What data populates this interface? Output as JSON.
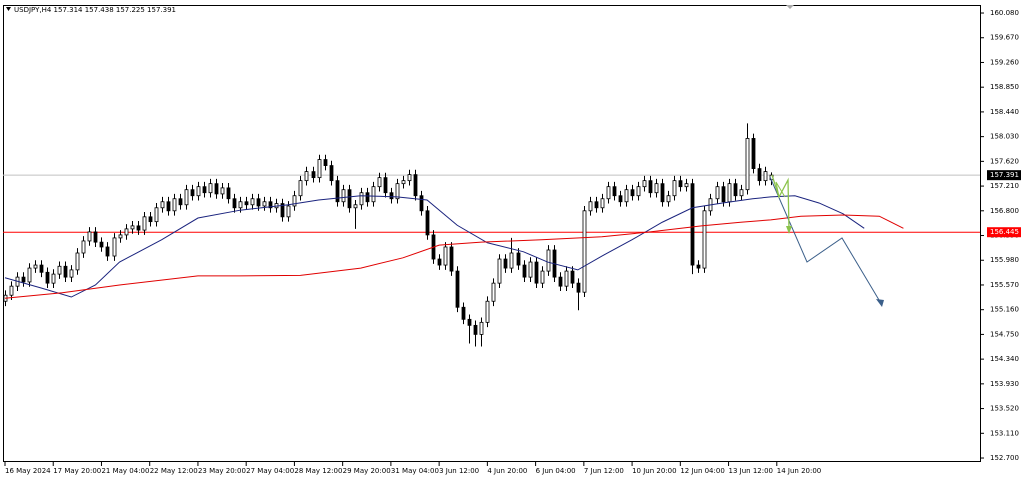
{
  "chart_data": {
    "type": "candlestick",
    "title": "USDJPY,H4 157.314 157.438 157.225 157.391",
    "bull_color": "#ffffff",
    "bear_color": "#000000",
    "wick_color": "#000000",
    "grid": false,
    "xlim": [
      -0.33,
      161.7
    ],
    "ylim": [
      152.634,
      160.213
    ],
    "open": [
      155.3,
      155.4,
      155.55,
      155.7,
      155.62,
      155.85,
      155.9,
      155.78,
      155.6,
      155.75,
      155.88,
      155.7,
      155.82,
      156.1,
      156.3,
      156.45,
      156.28,
      156.2,
      156.05,
      156.35,
      156.4,
      156.5,
      156.55,
      156.48,
      156.7,
      156.62,
      156.85,
      156.95,
      156.8,
      157.0,
      156.9,
      157.15,
      157.05,
      157.2,
      157.1,
      157.25,
      157.08,
      157.18,
      157.0,
      156.85,
      156.95,
      156.9,
      157.0,
      156.88,
      156.95,
      156.85,
      156.92,
      156.7,
      156.88,
      157.05,
      157.3,
      157.45,
      157.35,
      157.65,
      157.55,
      157.3,
      156.95,
      157.15,
      156.85,
      156.9,
      157.1,
      156.95,
      157.2,
      157.35,
      157.1,
      157.0,
      157.25,
      157.3,
      157.4,
      157.05,
      156.8,
      156.4,
      156.0,
      155.9,
      156.2,
      155.8,
      155.2,
      155.0,
      154.9,
      154.75,
      154.95,
      155.3,
      155.6,
      156.0,
      155.85,
      156.1,
      155.9,
      155.7,
      155.95,
      155.6,
      155.8,
      156.15,
      155.7,
      155.55,
      155.8,
      155.6,
      155.45,
      156.8,
      156.95,
      156.85,
      157.0,
      157.2,
      157.05,
      156.95,
      157.15,
      157.05,
      157.2,
      157.3,
      157.1,
      157.25,
      156.95,
      157.05,
      157.3,
      157.2,
      157.25,
      155.9,
      155.85,
      156.8,
      157.0,
      157.2,
      156.95,
      157.25,
      157.05,
      157.15,
      158.0,
      157.5,
      157.3,
      157.314
    ],
    "high": [
      155.48,
      155.63,
      155.78,
      155.78,
      155.93,
      155.98,
      155.98,
      155.86,
      155.83,
      155.96,
      155.96,
      155.9,
      156.18,
      156.38,
      156.53,
      156.53,
      156.36,
      156.28,
      156.43,
      156.48,
      156.58,
      156.63,
      156.63,
      156.78,
      156.78,
      156.93,
      157.03,
      157.03,
      157.08,
      157.08,
      157.23,
      157.23,
      157.28,
      157.28,
      157.33,
      157.33,
      157.26,
      157.26,
      157.08,
      157.03,
      157.03,
      157.08,
      157.08,
      157.03,
      157.03,
      157.0,
      157.0,
      156.96,
      157.13,
      157.38,
      157.53,
      157.53,
      157.73,
      157.73,
      157.63,
      157.38,
      157.23,
      157.23,
      156.98,
      157.18,
      157.18,
      157.28,
      157.43,
      157.43,
      157.18,
      157.33,
      157.38,
      157.48,
      157.48,
      157.13,
      156.88,
      156.48,
      156.08,
      156.28,
      156.28,
      155.88,
      155.28,
      155.08,
      154.98,
      155.03,
      155.38,
      155.68,
      156.08,
      156.08,
      156.35,
      156.18,
      155.98,
      156.03,
      156.03,
      155.88,
      156.23,
      156.23,
      155.78,
      155.88,
      155.88,
      155.68,
      156.88,
      157.03,
      157.03,
      157.08,
      157.28,
      157.28,
      157.13,
      157.23,
      157.23,
      157.28,
      157.38,
      157.38,
      157.33,
      157.33,
      157.13,
      157.38,
      157.38,
      157.33,
      157.33,
      155.98,
      156.88,
      157.08,
      157.28,
      157.28,
      157.33,
      157.33,
      157.23,
      158.25,
      158.08,
      157.58,
      157.53,
      157.438
    ],
    "low": [
      155.22,
      155.32,
      155.47,
      155.54,
      155.54,
      155.77,
      155.7,
      155.52,
      155.52,
      155.67,
      155.62,
      155.62,
      155.74,
      156.02,
      156.22,
      156.2,
      156.12,
      155.97,
      155.97,
      156.27,
      156.32,
      156.42,
      156.4,
      156.4,
      156.54,
      156.54,
      156.77,
      156.72,
      156.72,
      156.82,
      156.82,
      156.97,
      156.97,
      157.02,
      157.02,
      157.0,
      157.0,
      156.92,
      156.77,
      156.77,
      156.82,
      156.82,
      156.8,
      156.8,
      156.77,
      156.77,
      156.62,
      156.62,
      156.8,
      156.97,
      157.22,
      157.27,
      157.27,
      157.47,
      157.22,
      156.87,
      156.87,
      156.77,
      156.5,
      156.82,
      156.87,
      156.87,
      157.12,
      157.02,
      156.92,
      156.92,
      157.17,
      157.22,
      156.97,
      156.72,
      156.32,
      155.92,
      155.82,
      155.82,
      155.72,
      155.12,
      154.92,
      154.6,
      154.55,
      154.55,
      154.87,
      155.22,
      155.52,
      155.77,
      155.77,
      155.82,
      155.62,
      155.62,
      155.52,
      155.52,
      155.72,
      155.62,
      155.47,
      155.47,
      155.52,
      155.15,
      155.37,
      156.72,
      156.77,
      156.77,
      156.92,
      156.97,
      156.87,
      156.87,
      156.97,
      156.97,
      157.12,
      157.02,
      157.02,
      156.87,
      156.87,
      156.97,
      157.12,
      157.12,
      155.75,
      155.77,
      155.77,
      156.72,
      156.92,
      156.87,
      156.87,
      156.97,
      156.97,
      157.07,
      157.42,
      157.22,
      157.22,
      157.225
    ],
    "close": [
      155.4,
      155.55,
      155.7,
      155.62,
      155.85,
      155.9,
      155.78,
      155.6,
      155.75,
      155.88,
      155.7,
      155.82,
      156.1,
      156.3,
      156.45,
      156.28,
      156.2,
      156.05,
      156.35,
      156.4,
      156.5,
      156.55,
      156.48,
      156.7,
      156.62,
      156.85,
      156.95,
      156.8,
      157.0,
      156.9,
      157.15,
      157.05,
      157.2,
      157.1,
      157.25,
      157.08,
      157.18,
      157.0,
      156.85,
      156.95,
      156.9,
      157.0,
      156.88,
      156.95,
      156.85,
      156.92,
      156.7,
      156.88,
      157.05,
      157.3,
      157.45,
      157.35,
      157.65,
      157.55,
      157.3,
      156.95,
      157.15,
      156.85,
      156.9,
      157.1,
      156.95,
      157.2,
      157.35,
      157.1,
      157.0,
      157.25,
      157.3,
      157.4,
      157.05,
      156.8,
      156.4,
      156.0,
      155.9,
      156.2,
      155.8,
      155.2,
      155.0,
      154.9,
      154.75,
      154.95,
      155.3,
      155.6,
      156.0,
      155.85,
      156.1,
      155.9,
      155.7,
      155.95,
      155.6,
      155.8,
      156.15,
      155.7,
      155.55,
      155.8,
      155.6,
      155.45,
      156.8,
      156.95,
      156.85,
      157.0,
      157.2,
      157.05,
      156.95,
      157.15,
      157.05,
      157.2,
      157.3,
      157.1,
      157.25,
      156.95,
      157.05,
      157.3,
      157.2,
      157.25,
      155.9,
      155.85,
      156.8,
      157.0,
      157.2,
      156.95,
      157.25,
      157.05,
      157.15,
      158.0,
      157.5,
      157.3,
      157.45,
      157.391
    ],
    "moving_averages": [
      {
        "color": "#1a237e",
        "x": [
          0,
          6,
          11,
          15,
          19,
          26,
          32,
          39,
          47,
          52,
          59,
          65,
          70,
          75,
          80,
          86,
          90,
          95,
          99,
          104,
          109,
          114,
          119,
          124,
          127,
          131,
          135,
          139,
          142.5
        ],
        "values": [
          155.69,
          155.52,
          155.37,
          155.57,
          155.95,
          156.32,
          156.68,
          156.81,
          156.9,
          156.98,
          157.05,
          157.03,
          156.98,
          156.56,
          156.27,
          156.12,
          155.95,
          155.82,
          156.05,
          156.32,
          156.61,
          156.85,
          156.93,
          157.0,
          157.03,
          157.05,
          156.93,
          156.75,
          156.51
        ]
      },
      {
        "color": "#e00000",
        "x": [
          0,
          9.5,
          19,
          32,
          39,
          49,
          59,
          66,
          72,
          79,
          89,
          99,
          107,
          115.5,
          122,
          127,
          132,
          139,
          145,
          149
        ],
        "values": [
          155.35,
          155.44,
          155.57,
          155.72,
          155.72,
          155.73,
          155.85,
          156.02,
          156.23,
          156.28,
          156.32,
          156.37,
          156.45,
          156.55,
          156.61,
          156.65,
          156.71,
          156.73,
          156.71,
          156.51
        ]
      }
    ],
    "price_lines": [
      {
        "value": 157.391,
        "label": "157.391",
        "color": "#c0c0c0",
        "box_color": "#000000"
      },
      {
        "value": 156.445,
        "label": "156.445",
        "color": "#ff0000",
        "box_color": "#ff0000"
      }
    ],
    "yticks": [
      {
        "value": 160.08,
        "label": "160.080"
      },
      {
        "value": 159.67,
        "label": "159.670"
      },
      {
        "value": 159.26,
        "label": "159.260"
      },
      {
        "value": 158.85,
        "label": "158.850"
      },
      {
        "value": 158.44,
        "label": "158.440"
      },
      {
        "value": 158.03,
        "label": "158.030"
      },
      {
        "value": 157.62,
        "label": "157.620"
      },
      {
        "value": 157.21,
        "label": "157.210"
      },
      {
        "value": 156.8,
        "label": "156.800"
      },
      {
        "value": 156.39,
        "label": "156.390"
      },
      {
        "value": 155.98,
        "label": "155.980"
      },
      {
        "value": 155.57,
        "label": "155.570"
      },
      {
        "value": 155.16,
        "label": "155.160"
      },
      {
        "value": 154.75,
        "label": "154.750"
      },
      {
        "value": 154.34,
        "label": "154.340"
      },
      {
        "value": 153.93,
        "label": "153.930"
      },
      {
        "value": 153.52,
        "label": "153.520"
      },
      {
        "value": 153.11,
        "label": "153.110"
      },
      {
        "value": 152.7,
        "label": "152.700"
      }
    ],
    "xticks": [
      {
        "value": 0,
        "label": "16 May 2024"
      },
      {
        "value": 8,
        "label": "17 May 20:00"
      },
      {
        "value": 16,
        "label": "21 May 04:00"
      },
      {
        "value": 24,
        "label": "22 May 12:00"
      },
      {
        "value": 32,
        "label": "23 May 20:00"
      },
      {
        "value": 40,
        "label": "27 May 04:00"
      },
      {
        "value": 48,
        "label": "28 May 12:00"
      },
      {
        "value": 56,
        "label": "29 May 20:00"
      },
      {
        "value": 64,
        "label": "31 May 04:00"
      },
      {
        "value": 72,
        "label": "3 Jun 12:00"
      },
      {
        "value": 80,
        "label": "4 Jun 20:00"
      },
      {
        "value": 88,
        "label": "6 Jun 04:00"
      },
      {
        "value": 96,
        "label": "7 Jun 12:00"
      },
      {
        "value": 104,
        "label": "10 Jun 20:00"
      },
      {
        "value": 112,
        "label": "12 Jun 04:00"
      },
      {
        "value": 120,
        "label": "13 Jun 12:00"
      },
      {
        "value": 128,
        "label": "14 Jun 20:00"
      }
    ]
  }
}
